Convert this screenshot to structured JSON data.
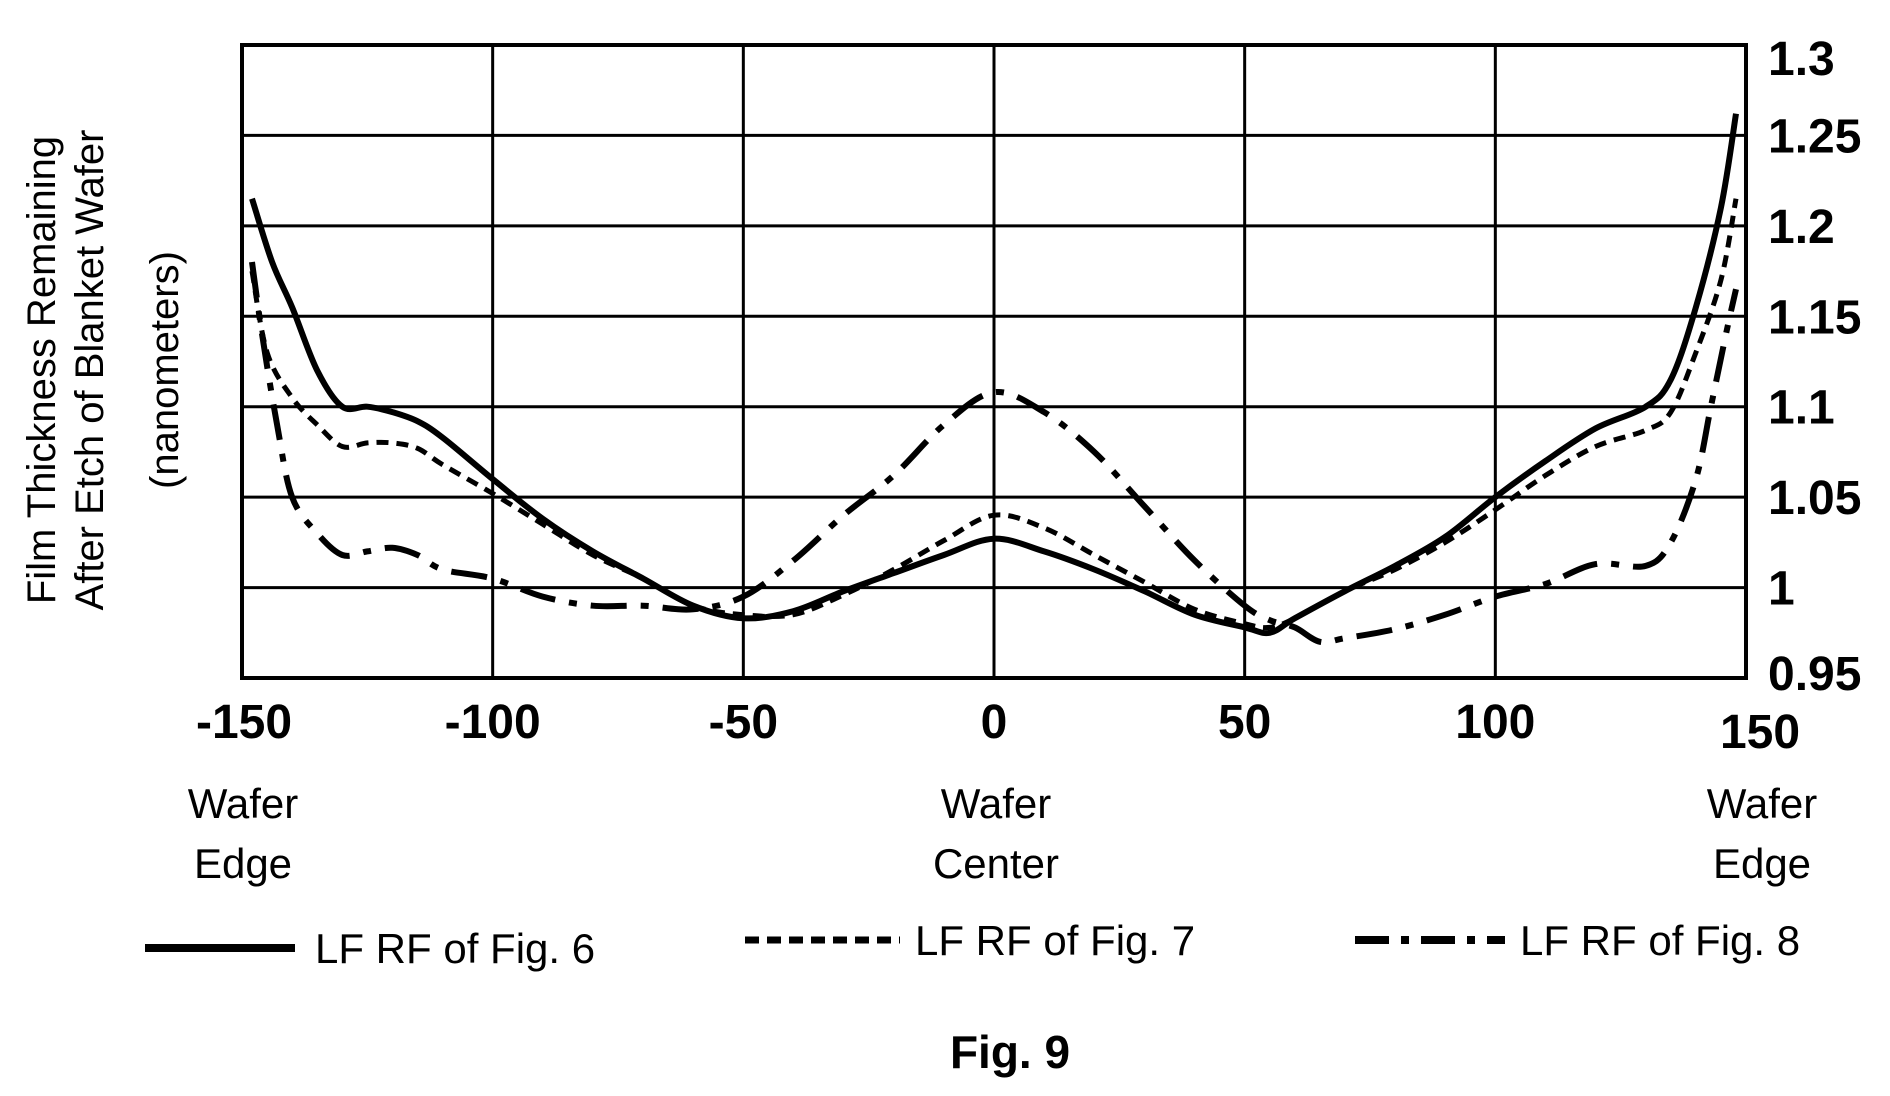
{
  "chart_data": {
    "type": "line",
    "title": "",
    "caption": "Fig. 9",
    "ylabel_lines": [
      "Film Thickness Remaining",
      "After Etch of Blanket Wafer",
      "(nanometers)"
    ],
    "xlim": [
      -150,
      150
    ],
    "ylim": [
      0.95,
      1.3
    ],
    "x_ticks": [
      "-150",
      "-100",
      "-50",
      "0",
      "50",
      "100",
      "150"
    ],
    "y_ticks": [
      "1.3",
      "1.25",
      "1.2",
      "1.15",
      "1.1",
      "1.05",
      "1",
      "0.95"
    ],
    "grid": true,
    "position_labels": {
      "left": [
        "Wafer",
        "Edge"
      ],
      "center": [
        "Wafer",
        "Center"
      ],
      "right": [
        "Wafer",
        "Edge"
      ]
    },
    "series": [
      {
        "name": "LF RF of Fig. 6",
        "style": "solid",
        "x": [
          -148,
          -144,
          -140,
          -135,
          -130,
          -125,
          -120,
          -115,
          -110,
          -100,
          -90,
          -80,
          -70,
          -60,
          -50,
          -40,
          -30,
          -20,
          -10,
          0,
          10,
          20,
          30,
          40,
          50,
          55,
          60,
          70,
          80,
          90,
          100,
          110,
          120,
          130,
          135,
          140,
          145,
          148
        ],
        "y": [
          1.215,
          1.18,
          1.155,
          1.12,
          1.1,
          1.1,
          1.097,
          1.092,
          1.083,
          1.06,
          1.038,
          1.02,
          1.005,
          0.99,
          0.983,
          0.987,
          0.998,
          1.008,
          1.018,
          1.027,
          1.02,
          1.01,
          0.998,
          0.985,
          0.978,
          0.975,
          0.983,
          0.998,
          1.012,
          1.028,
          1.05,
          1.07,
          1.088,
          1.1,
          1.115,
          1.155,
          1.21,
          1.262
        ]
      },
      {
        "name": "LF RF of Fig. 7",
        "style": "dashed",
        "x": [
          -148,
          -145,
          -140,
          -135,
          -130,
          -125,
          -120,
          -115,
          -110,
          -100,
          -90,
          -80,
          -70,
          -60,
          -50,
          -40,
          -30,
          -20,
          -10,
          0,
          10,
          20,
          30,
          40,
          50,
          55,
          60,
          70,
          80,
          90,
          100,
          110,
          120,
          130,
          135,
          140,
          145,
          148
        ],
        "y": [
          1.175,
          1.13,
          1.105,
          1.09,
          1.078,
          1.08,
          1.08,
          1.077,
          1.068,
          1.052,
          1.035,
          1.018,
          1.005,
          0.99,
          0.985,
          0.985,
          0.996,
          1.01,
          1.026,
          1.04,
          1.033,
          1.018,
          1.003,
          0.988,
          0.98,
          0.978,
          0.983,
          0.998,
          1.01,
          1.025,
          1.043,
          1.062,
          1.078,
          1.087,
          1.097,
          1.13,
          1.17,
          1.215
        ]
      },
      {
        "name": "LF RF of Fig. 8",
        "style": "dash-dot",
        "x": [
          -148,
          -146,
          -143,
          -140,
          -135,
          -130,
          -125,
          -120,
          -115,
          -110,
          -100,
          -90,
          -80,
          -70,
          -60,
          -50,
          -40,
          -30,
          -20,
          -10,
          0,
          10,
          20,
          30,
          40,
          50,
          55,
          60,
          65,
          70,
          80,
          90,
          100,
          110,
          120,
          130,
          135,
          140,
          143,
          146,
          148
        ],
        "y": [
          1.18,
          1.14,
          1.09,
          1.05,
          1.03,
          1.018,
          1.02,
          1.022,
          1.018,
          1.01,
          1.005,
          0.995,
          0.99,
          0.99,
          0.988,
          0.995,
          1.015,
          1.04,
          1.062,
          1.09,
          1.108,
          1.097,
          1.075,
          1.045,
          1.015,
          0.99,
          0.982,
          0.978,
          0.97,
          0.972,
          0.977,
          0.985,
          0.995,
          1.002,
          1.013,
          1.012,
          1.025,
          1.06,
          1.1,
          1.14,
          1.165
        ]
      }
    ]
  }
}
